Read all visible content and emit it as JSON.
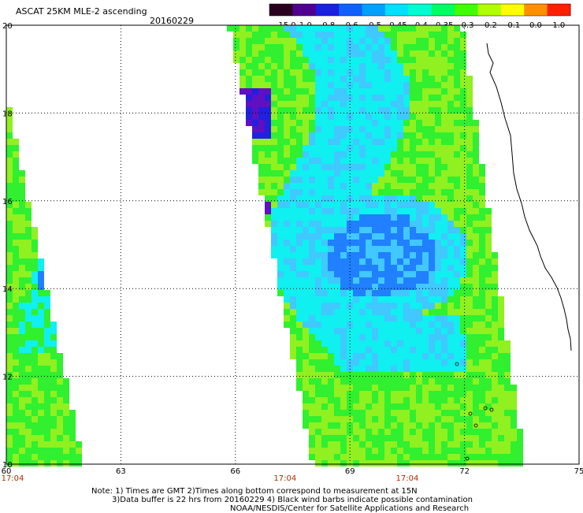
{
  "header": {
    "title": "ASCAT 25KM MLE-2 ascending",
    "date": "20160229"
  },
  "colorbar": {
    "labels": [
      "-15.0",
      "-1.0",
      "-0.8",
      "-0.6",
      "-0.5",
      "-0.45",
      "-0.4",
      "-0.35",
      "-0.3",
      "-0.2",
      "-0.1",
      "0.0",
      "1.0"
    ],
    "colors": [
      "#2a0020",
      "#500090",
      "#1a20e0",
      "#1060ff",
      "#00a0ff",
      "#00e0ff",
      "#00ffd0",
      "#00ff60",
      "#40ff00",
      "#b0ff00",
      "#ffff00",
      "#ff9000",
      "#ff2000"
    ]
  },
  "map": {
    "lon_range": [
      60,
      75
    ],
    "lat_range": [
      10,
      20
    ],
    "lon_ticks": [
      "60",
      "63",
      "66",
      "69",
      "72",
      "75"
    ],
    "lat_ticks": [
      "20",
      "18",
      "16",
      "14",
      "12",
      "10"
    ],
    "time_labels": [
      {
        "text": "17:04",
        "lon": 60.0
      },
      {
        "text": "17:04",
        "lon": 67.3
      },
      {
        "text": "17:04",
        "lon": 70.5
      }
    ],
    "swath_colors": {
      "green": "#30f030",
      "lime": "#90f020",
      "cyan": "#10f0f0",
      "lightblue": "#40c8ff",
      "blue": "#2080ff",
      "darkblue": "#2020e0",
      "purple": "#6010c0"
    },
    "coastline_color": "#000000"
  },
  "notes": {
    "line1": "Note: 1) Times are GMT 2)Times along bottom correspond to measurement at 15N",
    "line2": "3)Data buffer is 22 hrs from 20160229 4) Black wind barbs indicate possible contamination",
    "line3": "NOAA/NESDIS/Center for Satellite Applications and Research"
  }
}
